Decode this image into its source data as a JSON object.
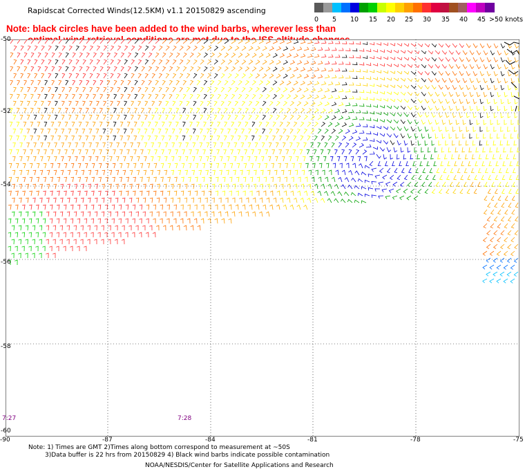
{
  "title": "Rapidscat Corrected Winds(12.5KM) v1.1 20150829 ascending",
  "note_line1": "Note: black circles have been added to the wind barbs, wherever less than",
  "note_line2": "optimal wind retrieval conditions are met due to the ISS altitude changes.",
  "legend": {
    "labels": [
      "0",
      "5",
      "10",
      "15",
      "20",
      "25",
      "30",
      "35",
      "40",
      "45",
      ">50 knots"
    ],
    "colors": [
      "#5a5a5a",
      "#9a9a9a",
      "#00c0ff",
      "#0070ff",
      "#0000e0",
      "#00a000",
      "#00d000",
      "#c8ff00",
      "#ffff00",
      "#ffd000",
      "#ffa000",
      "#ff7000",
      "#ff3030",
      "#e00040",
      "#c01040",
      "#a05020",
      "#a06060",
      "#ff00ff",
      "#c000c0",
      "#7000a0"
    ]
  },
  "map": {
    "lon_labels": [
      "-90",
      "-87",
      "-84",
      "-81",
      "-78",
      "-75"
    ],
    "lat_labels": [
      "-50",
      "-52",
      "-54",
      "-56",
      "-58",
      "-60"
    ]
  },
  "times": [
    "7:27",
    "7:28"
  ],
  "footer": {
    "line1": "Note: 1) Times are GMT 2)Times along bottom correspond to measurement at ~50S",
    "line2": "3)Data buffer is 22 hrs from 20150829 4) Black wind barbs indicate possible contamination",
    "line3": "NOAA/NESDIS/Center for Satellite Applications and Research"
  }
}
